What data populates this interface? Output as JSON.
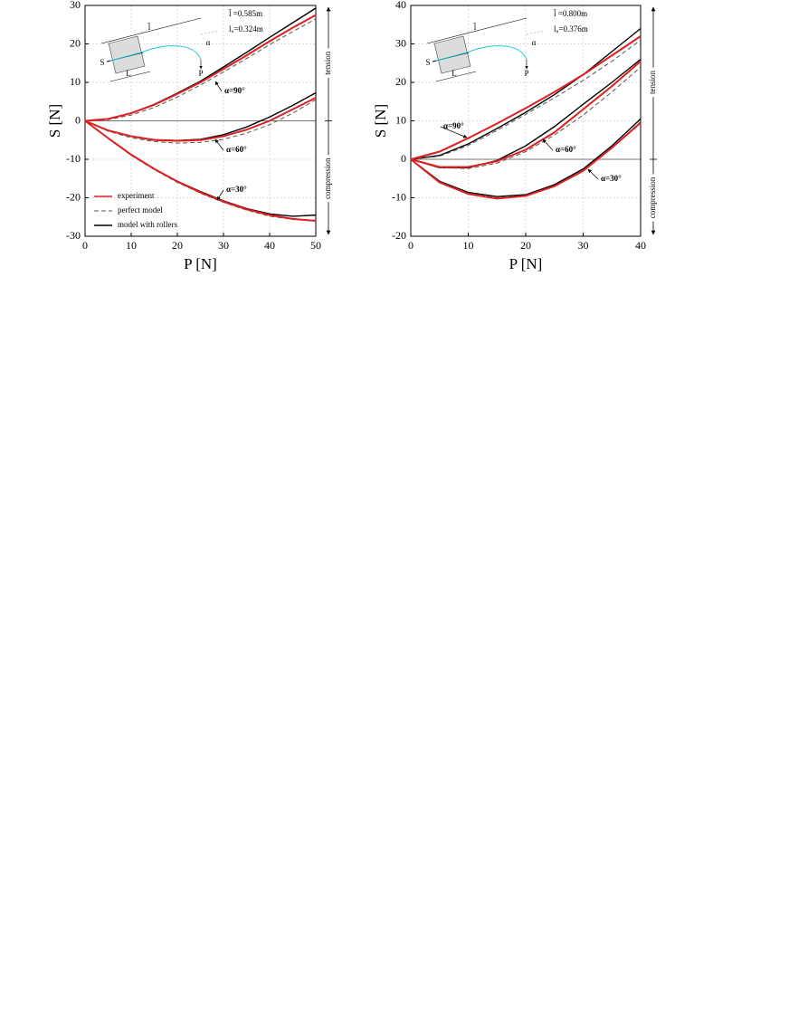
{
  "chart_data": [
    {
      "type": "line",
      "xlabel": "P [N]",
      "ylabel": "S [N]",
      "xlim": [
        0,
        50
      ],
      "ylim": [
        -30,
        30
      ],
      "xticks": [
        0,
        10,
        20,
        30,
        40,
        50
      ],
      "yticks": [
        -30,
        -20,
        -10,
        0,
        10,
        20,
        30
      ],
      "grid": true,
      "legend": "lower left",
      "x": [
        0,
        5,
        10,
        15,
        20,
        25,
        30,
        35,
        40,
        45,
        50
      ],
      "series": [
        {
          "name": "experiment",
          "color": "#e02020",
          "dash": false,
          "values": [
            0,
            0.5,
            2,
            4.2,
            7,
            10,
            13.5,
            17,
            20.7,
            24.2,
            27.5
          ]
        },
        {
          "name": "perfect model",
          "color": "#555555",
          "dash": true,
          "values": [
            0,
            0.3,
            1.5,
            3.5,
            6.2,
            9.3,
            12.7,
            16.2,
            19.8,
            23.2,
            26.5
          ]
        },
        {
          "name": "model with rollers",
          "color": "#000000",
          "dash": false,
          "values": [
            0,
            0.5,
            2,
            4.3,
            7.2,
            10.3,
            14,
            17.8,
            21.7,
            25.5,
            29.3
          ]
        },
        {
          "name": "experiment",
          "color": "#e02020",
          "dash": false,
          "values": [
            0,
            -2.5,
            -4,
            -5,
            -5.2,
            -5,
            -4,
            -2.3,
            0,
            3,
            6
          ]
        },
        {
          "name": "perfect model",
          "color": "#555555",
          "dash": true,
          "values": [
            0,
            -2.7,
            -4.4,
            -5.4,
            -5.8,
            -5.6,
            -4.8,
            -3.2,
            -1,
            2,
            5.5
          ]
        },
        {
          "name": "model with rollers",
          "color": "#000000",
          "dash": false,
          "values": [
            0,
            -2.5,
            -4,
            -4.9,
            -5.1,
            -4.8,
            -3.6,
            -1.6,
            1,
            4,
            7.3
          ]
        },
        {
          "name": "experiment",
          "color": "#e02020",
          "dash": false,
          "values": [
            0,
            -4.5,
            -8.8,
            -12.5,
            -15.8,
            -18.6,
            -21,
            -23,
            -24.5,
            -25.5,
            -26
          ]
        },
        {
          "name": "perfect model",
          "color": "#555555",
          "dash": true,
          "values": [
            0,
            -4.6,
            -9,
            -12.7,
            -16,
            -18.8,
            -21.2,
            -23.2,
            -24.8,
            -25.6,
            -25.8
          ]
        },
        {
          "name": "model with rollers",
          "color": "#000000",
          "dash": false,
          "values": [
            0,
            -4.5,
            -8.8,
            -12.5,
            -15.7,
            -18.4,
            -20.8,
            -22.8,
            -24.2,
            -24.8,
            -24.5
          ]
        }
      ],
      "annotations": [
        "α=90°",
        "α=60°",
        "α=30°"
      ],
      "parameters": [
        "l̄ =0.585m",
        "lᵤ=0.324m"
      ],
      "inset_labels": [
        "l̄",
        "S",
        "L",
        "P",
        "α"
      ],
      "side_labels": [
        "tension",
        "compression"
      ]
    },
    {
      "type": "line",
      "xlabel": "P [N]",
      "ylabel": "S [N]",
      "xlim": [
        0,
        40
      ],
      "ylim": [
        -20,
        40
      ],
      "xticks": [
        0,
        10,
        20,
        30,
        40
      ],
      "yticks": [
        -20,
        -10,
        0,
        10,
        20,
        30,
        40
      ],
      "grid": true,
      "legend": false,
      "x": [
        0,
        5,
        10,
        15,
        20,
        25,
        30,
        35,
        40
      ],
      "series": [
        {
          "name": "experiment",
          "color": "#e02020",
          "dash": false,
          "values": [
            0,
            2,
            5.5,
            9.3,
            13.3,
            17.5,
            22,
            27,
            32
          ]
        },
        {
          "name": "perfect model",
          "color": "#555555",
          "dash": true,
          "values": [
            0,
            0.8,
            3.6,
            7.5,
            11.7,
            16,
            20.5,
            25.5,
            31
          ]
        },
        {
          "name": "model with rollers",
          "color": "#000000",
          "dash": false,
          "values": [
            0,
            1,
            4,
            8,
            12.2,
            16.8,
            22,
            28,
            34
          ]
        },
        {
          "name": "experiment",
          "color": "#e02020",
          "dash": false,
          "values": [
            0,
            -2,
            -2,
            -0.5,
            2.5,
            7,
            13,
            19,
            25.5
          ]
        },
        {
          "name": "perfect model",
          "color": "#555555",
          "dash": true,
          "values": [
            0,
            -2.2,
            -2.4,
            -1,
            2,
            6.3,
            11.5,
            17.5,
            24
          ]
        },
        {
          "name": "model with rollers",
          "color": "#000000",
          "dash": false,
          "values": [
            0,
            -2.2,
            -2.2,
            -0.3,
            3.5,
            8.5,
            14.3,
            20,
            26
          ]
        },
        {
          "name": "experiment",
          "color": "#e02020",
          "dash": false,
          "values": [
            0,
            -6,
            -9,
            -10.2,
            -9.5,
            -7,
            -3,
            3,
            9.5
          ]
        },
        {
          "name": "perfect model",
          "color": "#555555",
          "dash": true,
          "values": [
            0,
            -5.8,
            -8.8,
            -10,
            -9.5,
            -7,
            -3,
            3,
            9.8
          ]
        },
        {
          "name": "model with rollers",
          "color": "#000000",
          "dash": false,
          "values": [
            0,
            -5.7,
            -8.6,
            -9.7,
            -9.2,
            -6.6,
            -2.5,
            3.5,
            10.5
          ]
        }
      ],
      "annotations": [
        "α=90°",
        "α=60°",
        "α=30°"
      ],
      "parameters": [
        "l̄ =0.800m",
        "lᵤ=0.376m"
      ],
      "inset_labels": [
        "l̄",
        "S",
        "L",
        "P",
        "α"
      ],
      "side_labels": [
        "tension",
        "compression"
      ]
    }
  ]
}
